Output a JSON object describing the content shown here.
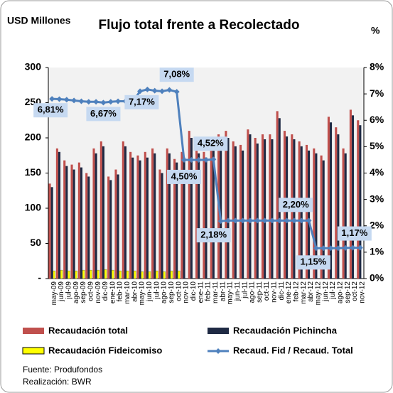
{
  "chart_data": {
    "type": "bar",
    "title": "Flujo total frente a Recolectado",
    "y_label": "USD Millones",
    "y2_label": "%",
    "categories": [
      "may-09",
      "jun-09",
      "jul-09",
      "ago-09",
      "sep-09",
      "oct-09",
      "nov-09",
      "dic-09",
      "ene-10",
      "feb-10",
      "mar-10",
      "abr-10",
      "may-10",
      "jun-10",
      "jul-10",
      "ago-10",
      "sep-10",
      "oct-10",
      "nov-10",
      "dic-10",
      "ene-11",
      "feb-11",
      "mar-11",
      "abr-11",
      "may-11",
      "jun-11",
      "jul-11",
      "ago-11",
      "sep-11",
      "oct-11",
      "nov-11",
      "dic-11",
      "ene-12",
      "feb-12",
      "mar-12",
      "abr-12",
      "may-12",
      "jun-12",
      "jul-12",
      "ago-12",
      "sep-12",
      "oct-12",
      "nov-12"
    ],
    "series": [
      {
        "name": "Recaudación total",
        "color": "#c0504d",
        "values": [
          135,
          185,
          168,
          162,
          165,
          150,
          185,
          195,
          145,
          155,
          195,
          180,
          175,
          180,
          185,
          155,
          185,
          170,
          180,
          210,
          185,
          180,
          195,
          205,
          210,
          195,
          190,
          212,
          200,
          205,
          205,
          238,
          210,
          205,
          195,
          190,
          185,
          175,
          230,
          215,
          185,
          240,
          225
        ]
      },
      {
        "name": "Recaudación Pichincha",
        "color": "#1f2a44",
        "values": [
          130,
          180,
          160,
          155,
          158,
          145,
          178,
          188,
          140,
          148,
          188,
          172,
          168,
          172,
          178,
          150,
          178,
          165,
          172,
          200,
          178,
          172,
          188,
          198,
          200,
          188,
          182,
          205,
          192,
          198,
          198,
          228,
          202,
          198,
          188,
          182,
          178,
          168,
          222,
          205,
          178,
          232,
          218
        ]
      },
      {
        "name": "Recaudación Fideicomiso",
        "color": "#ffff00",
        "values": [
          11,
          12,
          11,
          11,
          12,
          12,
          12,
          13,
          12,
          11,
          11,
          11,
          10,
          10,
          11,
          10,
          11,
          11,
          null,
          null,
          null,
          null,
          null,
          null,
          null,
          null,
          null,
          null,
          null,
          null,
          null,
          null,
          null,
          null,
          null,
          null,
          null,
          null,
          null,
          null,
          null,
          null,
          null
        ]
      },
      {
        "name": "Recaud. Fid / Recaud. Total",
        "color": "#4f81bd",
        "axis": "y2",
        "values": [
          6.81,
          6.8,
          6.78,
          6.75,
          6.72,
          6.7,
          6.7,
          6.67,
          6.7,
          6.72,
          6.72,
          6.7,
          7.1,
          7.17,
          7.12,
          7.1,
          7.15,
          7.08,
          4.5,
          4.5,
          4.5,
          4.5,
          4.52,
          2.18,
          2.2,
          2.2,
          2.2,
          2.2,
          2.2,
          2.2,
          2.2,
          2.2,
          2.2,
          2.2,
          2.2,
          2.2,
          1.15,
          1.15,
          1.15,
          1.15,
          1.16,
          1.17,
          1.17
        ],
        "value_labels": [
          "6,81%",
          null,
          null,
          null,
          null,
          null,
          null,
          "6,67%",
          null,
          null,
          null,
          null,
          null,
          "7,17%",
          null,
          null,
          null,
          "7,08%",
          "4,50%",
          null,
          null,
          null,
          "4,52%",
          "2,18%",
          null,
          null,
          null,
          null,
          null,
          null,
          null,
          null,
          null,
          null,
          "2,20%",
          null,
          "1,15%",
          null,
          null,
          null,
          null,
          null,
          "1,17%"
        ]
      }
    ],
    "ylim": [
      0,
      300
    ],
    "yticks": [
      {
        "value": 0,
        "label": "-"
      },
      50,
      100,
      150,
      200,
      250,
      300
    ],
    "y2lim": [
      0,
      8
    ],
    "y2ticks": [
      {
        "value": 0,
        "label": "0%"
      },
      {
        "value": 1,
        "label": "1%"
      },
      {
        "value": 2,
        "label": "2%"
      },
      {
        "value": 3,
        "label": "3%"
      },
      {
        "value": 4,
        "label": "4%"
      },
      {
        "value": 5,
        "label": "5%"
      },
      {
        "value": 6,
        "label": "6%"
      },
      {
        "value": 7,
        "label": "7%"
      },
      {
        "value": 8,
        "label": "8%"
      }
    ],
    "grid": false,
    "source": "Fuente: Produfondos",
    "credit": "Realización: BWR"
  }
}
